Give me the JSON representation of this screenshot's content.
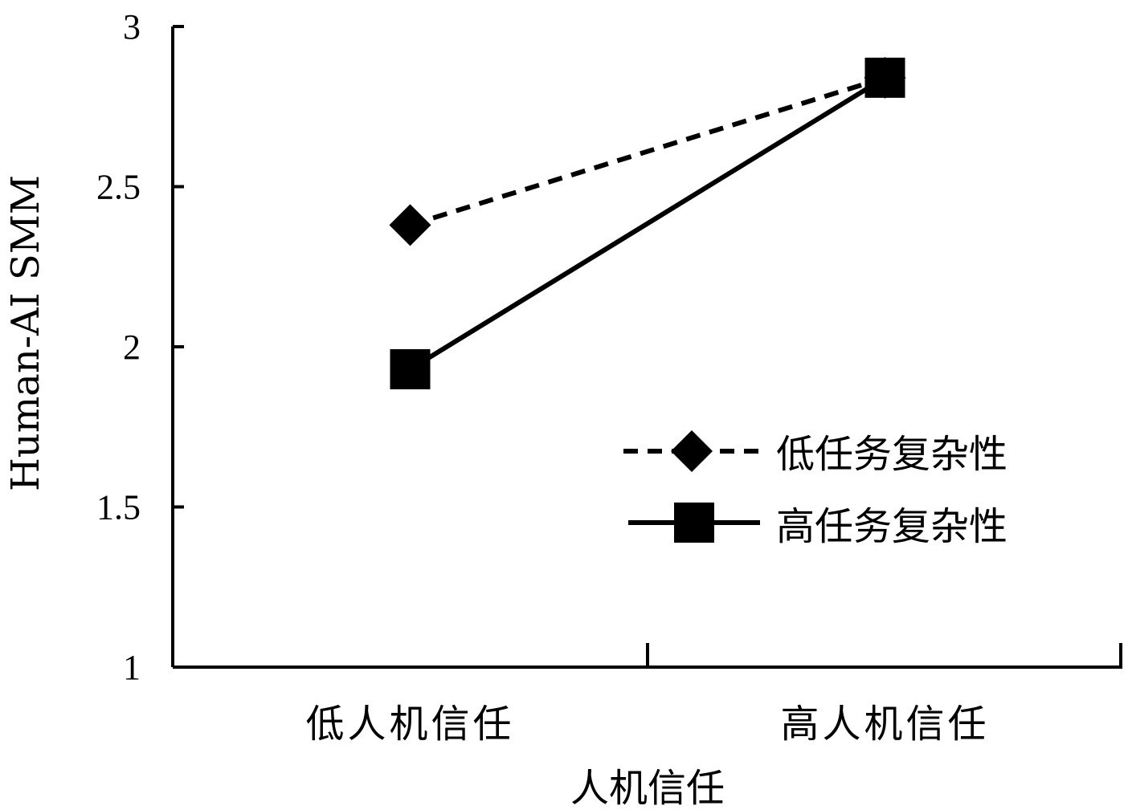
{
  "chart_data": {
    "type": "line",
    "categories": [
      "低人机信任",
      "高人机信任"
    ],
    "xlabel": "人机信任",
    "ylabel": "Human-AI SMM",
    "ylim": [
      1,
      3
    ],
    "yticks": [
      "1",
      "1.5",
      "2",
      "2.5",
      "3"
    ],
    "grid": false,
    "legend_position": "lower-right",
    "series": [
      {
        "name": "低任务复杂性",
        "values": [
          2.38,
          2.84
        ],
        "marker": "diamond",
        "line": "dashed",
        "color": "#000000"
      },
      {
        "name": "高任务复杂性",
        "values": [
          1.93,
          2.84
        ],
        "marker": "square",
        "line": "solid",
        "color": "#000000"
      }
    ]
  }
}
